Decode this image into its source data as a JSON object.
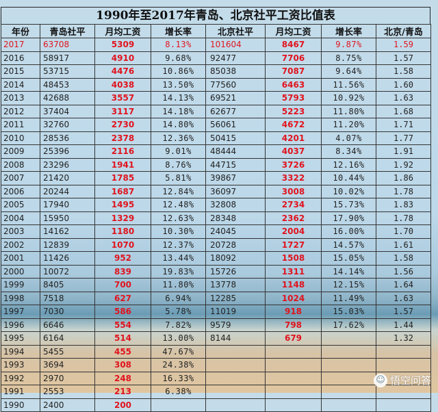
{
  "title": "1990年至2017年青岛、北京社平工资比值表",
  "headers": [
    "年份",
    "青岛社平",
    "月均工资",
    "增长率",
    "北京社平",
    "月均工资",
    "增长率",
    "北京/青岛"
  ],
  "rows": [
    [
      "2017",
      "63708",
      "5309",
      "8.13%",
      "101604",
      "8467",
      "9.87%",
      "1.59"
    ],
    [
      "2016",
      "58917",
      "4910",
      "9.68%",
      "92477",
      "7706",
      "8.75%",
      "1.57"
    ],
    [
      "2015",
      "53715",
      "4476",
      "10.86%",
      "85038",
      "7087",
      "9.64%",
      "1.58"
    ],
    [
      "2014",
      "48453",
      "4038",
      "13.50%",
      "77560",
      "6463",
      "11.56%",
      "1.60"
    ],
    [
      "2013",
      "42688",
      "3557",
      "14.13%",
      "69521",
      "5793",
      "10.92%",
      "1.63"
    ],
    [
      "2012",
      "37404",
      "3117",
      "14.18%",
      "62677",
      "5223",
      "11.80%",
      "1.68"
    ],
    [
      "2011",
      "32760",
      "2730",
      "14.80%",
      "56061",
      "4672",
      "11.20%",
      "1.71"
    ],
    [
      "2010",
      "28536",
      "2378",
      "12.36%",
      "50415",
      "4201",
      "4.07%",
      "1.77"
    ],
    [
      "2009",
      "25396",
      "2116",
      "9.01%",
      "48444",
      "4037",
      "8.34%",
      "1.91"
    ],
    [
      "2008",
      "23296",
      "1941",
      "8.76%",
      "44715",
      "3726",
      "12.16%",
      "1.92"
    ],
    [
      "2007",
      "21420",
      "1785",
      "5.81%",
      "39867",
      "3322",
      "10.44%",
      "1.86"
    ],
    [
      "2006",
      "20244",
      "1687",
      "12.84%",
      "36097",
      "3008",
      "10.02%",
      "1.78"
    ],
    [
      "2005",
      "17940",
      "1495",
      "12.48%",
      "32808",
      "2734",
      "15.73%",
      "1.83"
    ],
    [
      "2004",
      "15950",
      "1329",
      "12.63%",
      "28348",
      "2362",
      "17.90%",
      "1.78"
    ],
    [
      "2003",
      "14162",
      "1180",
      "10.30%",
      "24045",
      "2004",
      "16.00%",
      "1.70"
    ],
    [
      "2002",
      "12839",
      "1070",
      "12.37%",
      "20728",
      "1727",
      "14.57%",
      "1.61"
    ],
    [
      "2001",
      "11426",
      "952",
      "13.44%",
      "18092",
      "1508",
      "15.05%",
      "1.58"
    ],
    [
      "2000",
      "10072",
      "839",
      "19.83%",
      "15726",
      "1311",
      "14.14%",
      "1.56"
    ],
    [
      "1999",
      "8405",
      "700",
      "11.80%",
      "13778",
      "1148",
      "12.15%",
      "1.64"
    ],
    [
      "1998",
      "7518",
      "627",
      "6.94%",
      "12285",
      "1024",
      "11.49%",
      "1.63"
    ],
    [
      "1997",
      "7030",
      "586",
      "5.78%",
      "11019",
      "918",
      "15.03%",
      "1.57"
    ],
    [
      "1996",
      "6646",
      "554",
      "7.82%",
      "9579",
      "798",
      "17.62%",
      "1.44"
    ],
    [
      "1995",
      "6164",
      "514",
      "13.00%",
      "8144",
      "679",
      "",
      "1.32"
    ],
    [
      "1994",
      "5455",
      "455",
      "47.67%",
      "",
      "",
      "",
      ""
    ],
    [
      "1993",
      "3694",
      "308",
      "24.38%",
      "",
      "",
      "",
      ""
    ],
    [
      "1992",
      "2970",
      "248",
      "16.33%",
      "",
      "",
      "",
      ""
    ],
    [
      "1991",
      "2553",
      "213",
      "6.38%",
      "",
      "",
      "",
      ""
    ],
    [
      "1990",
      "2400",
      "200",
      "",
      "",
      "",
      "",
      ""
    ]
  ],
  "highlight_row_index": 0,
  "colors": {
    "accent_red": "#e0141e"
  },
  "watermark": {
    "text": "悟空问答",
    "icon": "wukong-logo-icon"
  }
}
